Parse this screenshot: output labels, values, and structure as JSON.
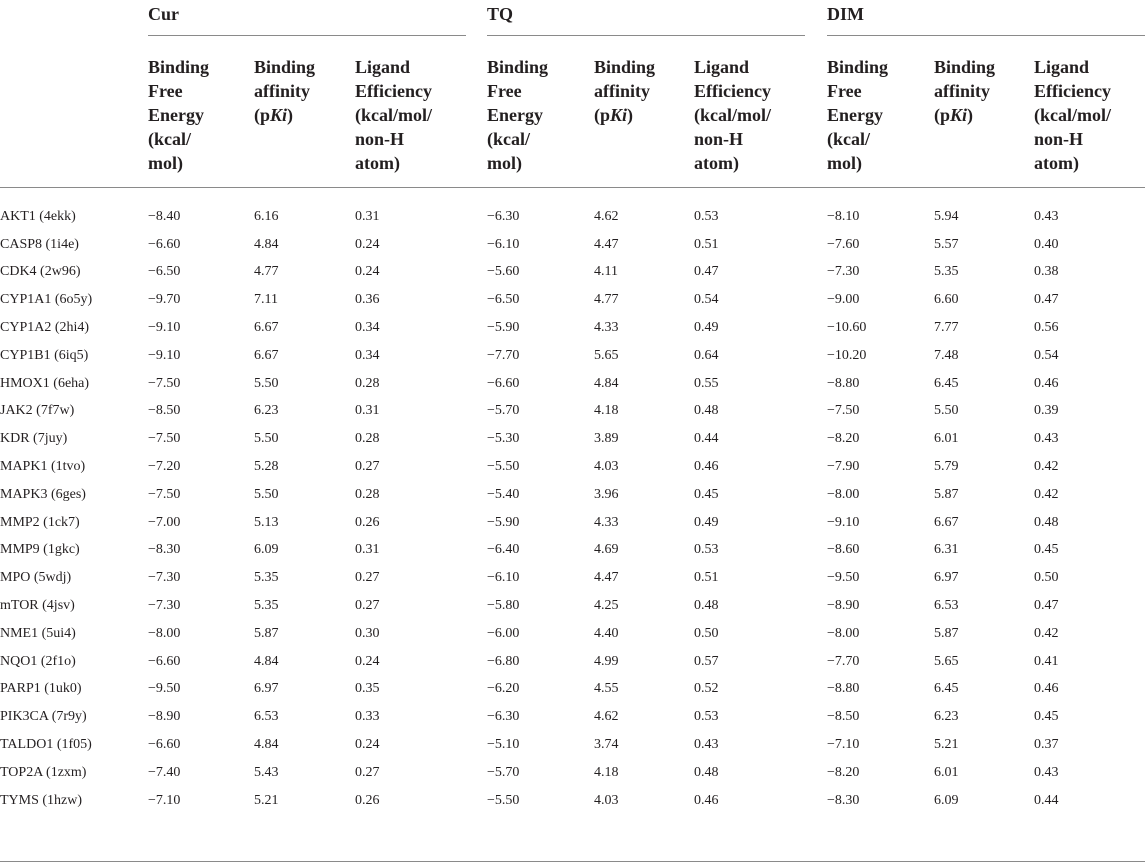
{
  "groups": [
    {
      "title": "Cur"
    },
    {
      "title": "TQ"
    },
    {
      "title": "DIM"
    }
  ],
  "column_headers": {
    "free_energy": "Binding\nFree\nEnergy\n(kcal/\nmol)",
    "affinity_line1": "Binding\naffinity\n(p",
    "affinity_italic": "Ki",
    "affinity_close": ")",
    "efficiency": "Ligand\nEfficiency\n(kcal/mol/\nnon-H\natom)"
  },
  "rows": [
    {
      "target": "AKT1 (4ekk)",
      "vals": [
        "−8.40",
        "6.16",
        "0.31",
        "−6.30",
        "4.62",
        "0.53",
        "−8.10",
        "5.94",
        "0.43"
      ]
    },
    {
      "target": "CASP8 (1i4e)",
      "vals": [
        "−6.60",
        "4.84",
        "0.24",
        "−6.10",
        "4.47",
        "0.51",
        "−7.60",
        "5.57",
        "0.40"
      ]
    },
    {
      "target": "CDK4 (2w96)",
      "vals": [
        "−6.50",
        "4.77",
        "0.24",
        "−5.60",
        "4.11",
        "0.47",
        "−7.30",
        "5.35",
        "0.38"
      ]
    },
    {
      "target": "CYP1A1 (6o5y)",
      "vals": [
        "−9.70",
        "7.11",
        "0.36",
        "−6.50",
        "4.77",
        "0.54",
        "−9.00",
        "6.60",
        "0.47"
      ]
    },
    {
      "target": "CYP1A2 (2hi4)",
      "vals": [
        "−9.10",
        "6.67",
        "0.34",
        "−5.90",
        "4.33",
        "0.49",
        "−10.60",
        "7.77",
        "0.56"
      ]
    },
    {
      "target": "CYP1B1 (6iq5)",
      "vals": [
        "−9.10",
        "6.67",
        "0.34",
        "−7.70",
        "5.65",
        "0.64",
        "−10.20",
        "7.48",
        "0.54"
      ]
    },
    {
      "target": "HMOX1 (6eha)",
      "vals": [
        "−7.50",
        "5.50",
        "0.28",
        "−6.60",
        "4.84",
        "0.55",
        "−8.80",
        "6.45",
        "0.46"
      ]
    },
    {
      "target": "JAK2 (7f7w)",
      "vals": [
        "−8.50",
        "6.23",
        "0.31",
        "−5.70",
        "4.18",
        "0.48",
        "−7.50",
        "5.50",
        "0.39"
      ]
    },
    {
      "target": "KDR (7juy)",
      "vals": [
        "−7.50",
        "5.50",
        "0.28",
        "−5.30",
        "3.89",
        "0.44",
        "−8.20",
        "6.01",
        "0.43"
      ]
    },
    {
      "target": "MAPK1 (1tvo)",
      "vals": [
        "−7.20",
        "5.28",
        "0.27",
        "−5.50",
        "4.03",
        "0.46",
        "−7.90",
        "5.79",
        "0.42"
      ]
    },
    {
      "target": "MAPK3 (6ges)",
      "vals": [
        "−7.50",
        "5.50",
        "0.28",
        "−5.40",
        "3.96",
        "0.45",
        "−8.00",
        "5.87",
        "0.42"
      ]
    },
    {
      "target": "MMP2 (1ck7)",
      "vals": [
        "−7.00",
        "5.13",
        "0.26",
        "−5.90",
        "4.33",
        "0.49",
        "−9.10",
        "6.67",
        "0.48"
      ]
    },
    {
      "target": "MMP9 (1gkc)",
      "vals": [
        "−8.30",
        "6.09",
        "0.31",
        "−6.40",
        "4.69",
        "0.53",
        "−8.60",
        "6.31",
        "0.45"
      ]
    },
    {
      "target": "MPO (5wdj)",
      "vals": [
        "−7.30",
        "5.35",
        "0.27",
        "−6.10",
        "4.47",
        "0.51",
        "−9.50",
        "6.97",
        "0.50"
      ]
    },
    {
      "target": "mTOR (4jsv)",
      "vals": [
        "−7.30",
        "5.35",
        "0.27",
        "−5.80",
        "4.25",
        "0.48",
        "−8.90",
        "6.53",
        "0.47"
      ]
    },
    {
      "target": "NME1 (5ui4)",
      "vals": [
        "−8.00",
        "5.87",
        "0.30",
        "−6.00",
        "4.40",
        "0.50",
        "−8.00",
        "5.87",
        "0.42"
      ]
    },
    {
      "target": "NQO1 (2f1o)",
      "vals": [
        "−6.60",
        "4.84",
        "0.24",
        "−6.80",
        "4.99",
        "0.57",
        "−7.70",
        "5.65",
        "0.41"
      ]
    },
    {
      "target": "PARP1 (1uk0)",
      "vals": [
        "−9.50",
        "6.97",
        "0.35",
        "−6.20",
        "4.55",
        "0.52",
        "−8.80",
        "6.45",
        "0.46"
      ]
    },
    {
      "target": "PIK3CA (7r9y)",
      "vals": [
        "−8.90",
        "6.53",
        "0.33",
        "−6.30",
        "4.62",
        "0.53",
        "−8.50",
        "6.23",
        "0.45"
      ]
    },
    {
      "target": "TALDO1 (1f05)",
      "vals": [
        "−6.60",
        "4.84",
        "0.24",
        "−5.10",
        "3.74",
        "0.43",
        "−7.10",
        "5.21",
        "0.37"
      ]
    },
    {
      "target": "TOP2A (1zxm)",
      "vals": [
        "−7.40",
        "5.43",
        "0.27",
        "−5.70",
        "4.18",
        "0.48",
        "−8.20",
        "6.01",
        "0.43"
      ]
    },
    {
      "target": "TYMS (1hzw)",
      "vals": [
        "−7.10",
        "5.21",
        "0.26",
        "−5.50",
        "4.03",
        "0.46",
        "−8.30",
        "6.09",
        "0.44"
      ]
    }
  ]
}
